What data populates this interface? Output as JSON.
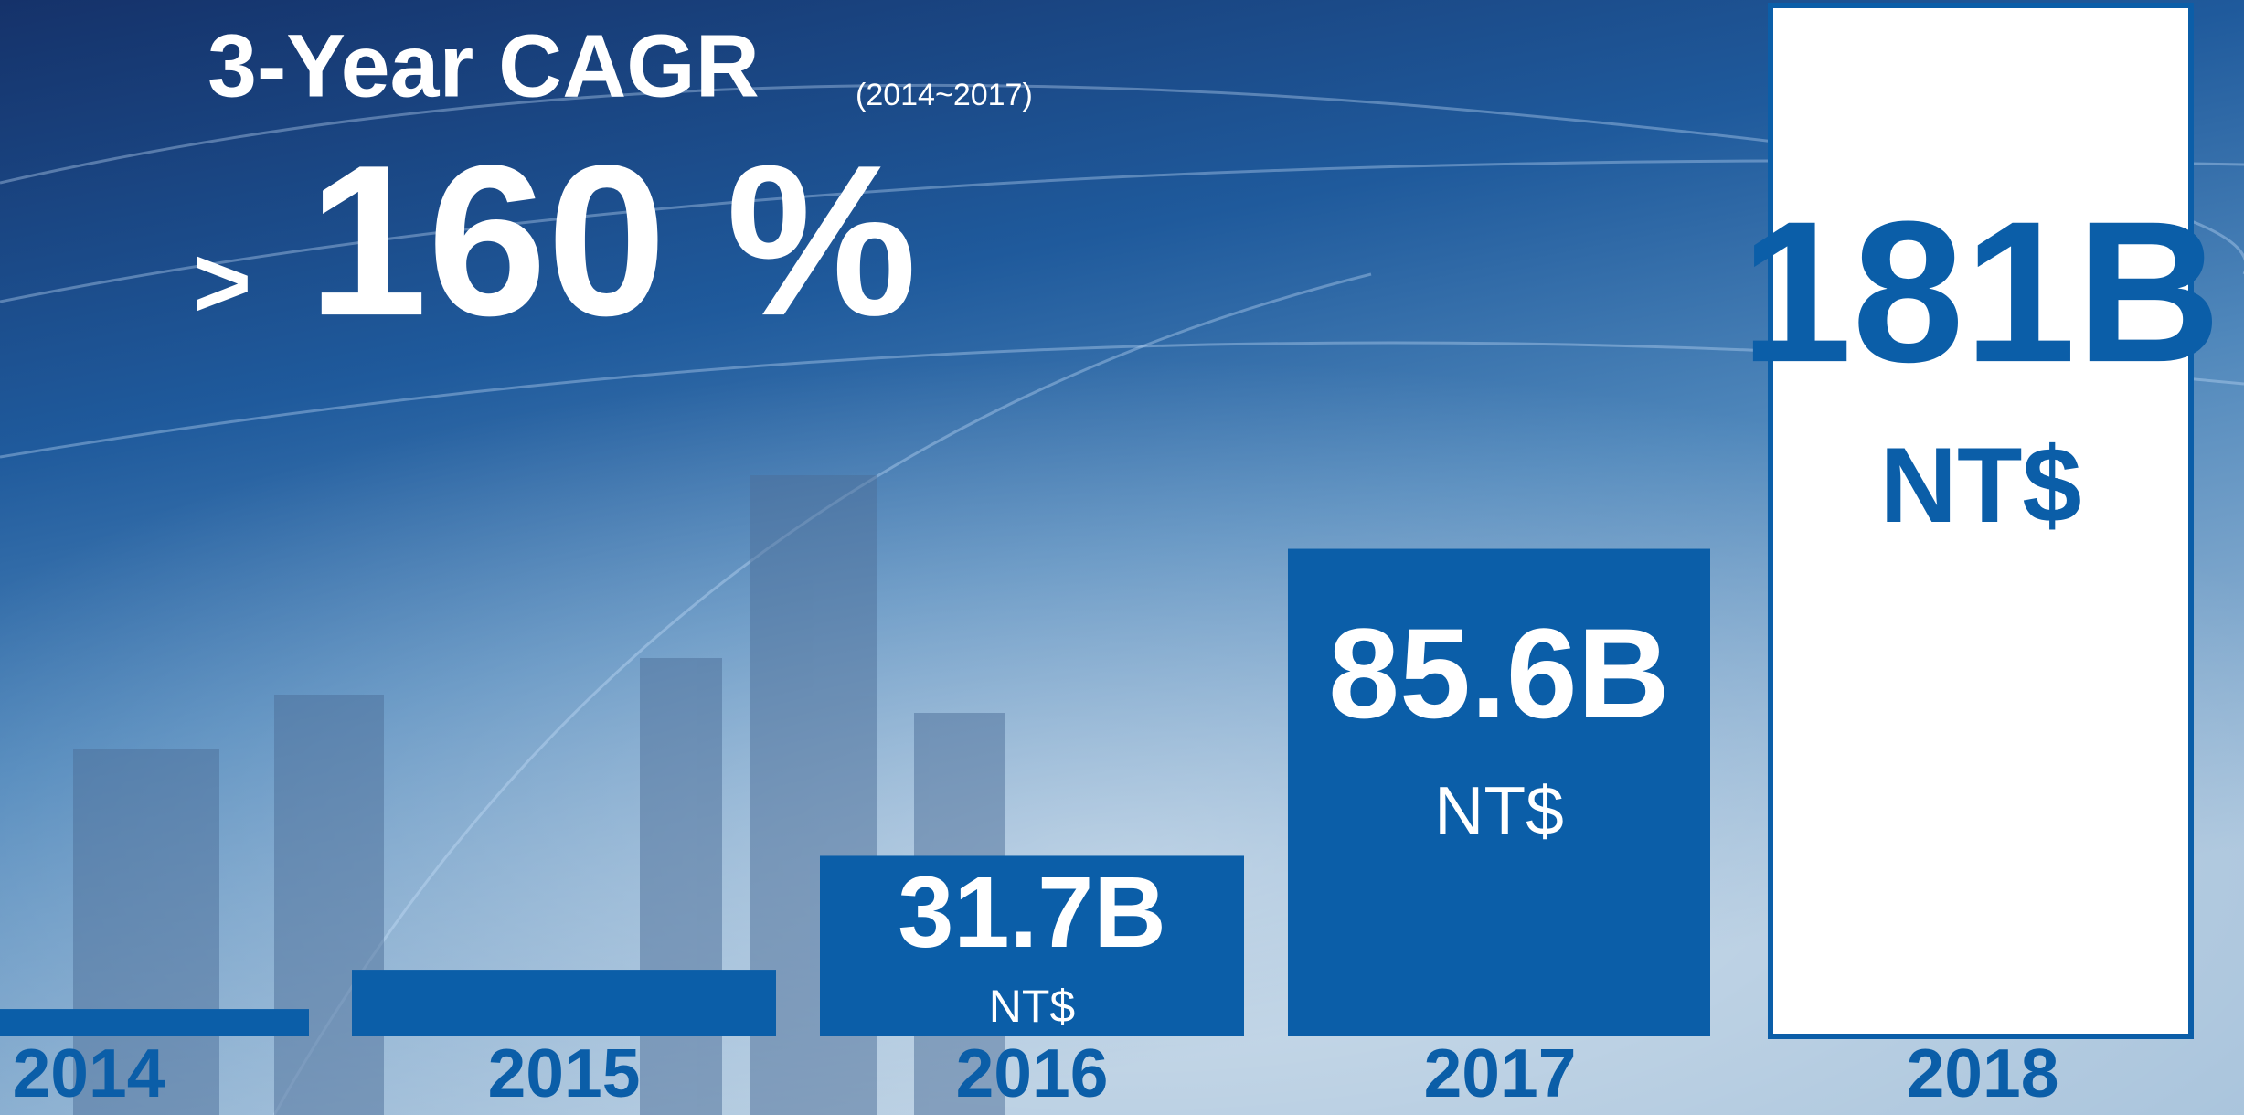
{
  "chart_data": {
    "type": "bar",
    "title": "3-Year CAGR",
    "subtitle": "(2014~2017)",
    "annotation": {
      "prefix": ">",
      "text": "160 %"
    },
    "categories": [
      "2014",
      "2015",
      "2016",
      "2017",
      "2018"
    ],
    "values": [
      4.8,
      11.7,
      31.7,
      85.6,
      181
    ],
    "value_labels": [
      null,
      null,
      "31.7B",
      "85.6B",
      "181B"
    ],
    "unit_labels": [
      null,
      null,
      "NT$",
      "NT$",
      "NT$"
    ],
    "color": "#0b5ea8",
    "bar_fills": [
      "#0b5ea8",
      "#0b5ea8",
      "#0b5ea8",
      "#0b5ea8",
      "#ffffff"
    ]
  }
}
